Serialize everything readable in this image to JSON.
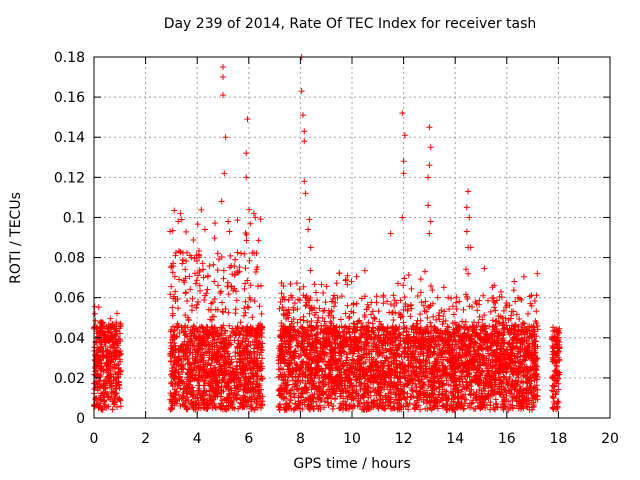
{
  "chart_data": {
    "type": "scatter",
    "title": "Day 239 of 2014, Rate Of TEC Index for receiver tash",
    "xlabel": "GPS time / hours",
    "ylabel": "ROTI / TECUs",
    "xlim": [
      0,
      20
    ],
    "ylim": [
      0,
      0.18
    ],
    "x_ticks": [
      "0",
      "2",
      "4",
      "6",
      "8",
      "10",
      "12",
      "14",
      "16",
      "18",
      "20"
    ],
    "y_ticks": [
      "0",
      "0.02",
      "0.04",
      "0.06",
      "0.08",
      "0.1",
      "0.12",
      "0.14",
      "0.16",
      "0.18"
    ],
    "grid": true,
    "marker": "+",
    "color": "#ff0000",
    "series": [
      {
        "name": "ROTI",
        "segments": [
          {
            "t_start": 0.0,
            "t_end": 1.05,
            "max": 0.058
          },
          {
            "t_start": 2.95,
            "t_end": 6.55,
            "max": 0.105
          },
          {
            "t_start": 7.15,
            "t_end": 17.2,
            "max": 0.075
          },
          {
            "t_start": 17.75,
            "t_end": 18.05,
            "max": 0.043
          }
        ],
        "spikes": [
          {
            "x": 5.0,
            "y": 0.175
          },
          {
            "x": 5.0,
            "y": 0.17
          },
          {
            "x": 5.0,
            "y": 0.161
          },
          {
            "x": 5.1,
            "y": 0.14
          },
          {
            "x": 5.05,
            "y": 0.122
          },
          {
            "x": 5.95,
            "y": 0.149
          },
          {
            "x": 5.9,
            "y": 0.132
          },
          {
            "x": 5.9,
            "y": 0.12
          },
          {
            "x": 8.05,
            "y": 0.18
          },
          {
            "x": 8.05,
            "y": 0.163
          },
          {
            "x": 8.1,
            "y": 0.151
          },
          {
            "x": 8.15,
            "y": 0.143
          },
          {
            "x": 8.15,
            "y": 0.138
          },
          {
            "x": 8.15,
            "y": 0.118
          },
          {
            "x": 8.2,
            "y": 0.112
          },
          {
            "x": 11.95,
            "y": 0.152
          },
          {
            "x": 12.05,
            "y": 0.141
          },
          {
            "x": 12.0,
            "y": 0.128
          },
          {
            "x": 12.0,
            "y": 0.122
          },
          {
            "x": 11.95,
            "y": 0.1
          },
          {
            "x": 13.0,
            "y": 0.145
          },
          {
            "x": 13.05,
            "y": 0.135
          },
          {
            "x": 13.0,
            "y": 0.126
          },
          {
            "x": 12.95,
            "y": 0.12
          },
          {
            "x": 12.95,
            "y": 0.106
          },
          {
            "x": 13.05,
            "y": 0.098
          },
          {
            "x": 13.0,
            "y": 0.092
          },
          {
            "x": 14.5,
            "y": 0.113
          },
          {
            "x": 14.45,
            "y": 0.105
          },
          {
            "x": 14.55,
            "y": 0.1
          },
          {
            "x": 14.45,
            "y": 0.093
          },
          {
            "x": 14.5,
            "y": 0.085
          },
          {
            "x": 4.95,
            "y": 0.108
          },
          {
            "x": 5.2,
            "y": 0.098
          },
          {
            "x": 5.25,
            "y": 0.093
          },
          {
            "x": 3.35,
            "y": 0.102
          },
          {
            "x": 3.4,
            "y": 0.099
          },
          {
            "x": 2.95,
            "y": 0.093
          },
          {
            "x": 4.3,
            "y": 0.094
          },
          {
            "x": 8.35,
            "y": 0.099
          },
          {
            "x": 8.3,
            "y": 0.094
          },
          {
            "x": 8.4,
            "y": 0.085
          },
          {
            "x": 11.5,
            "y": 0.092
          },
          {
            "x": 14.6,
            "y": 0.085
          },
          {
            "x": 6.2,
            "y": 0.102
          },
          {
            "x": 6.25,
            "y": 0.1
          }
        ]
      }
    ]
  }
}
